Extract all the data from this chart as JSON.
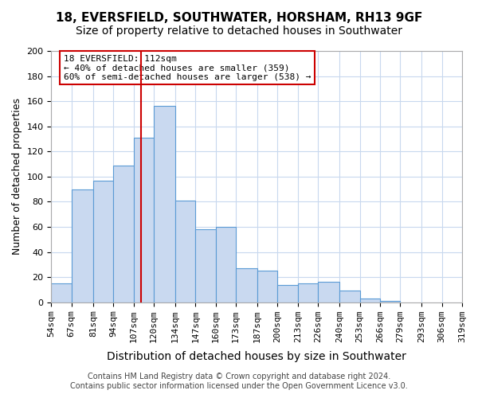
{
  "title": "18, EVERSFIELD, SOUTHWATER, HORSHAM, RH13 9GF",
  "subtitle": "Size of property relative to detached houses in Southwater",
  "xlabel": "Distribution of detached houses by size in Southwater",
  "ylabel": "Number of detached properties",
  "bar_values": [
    15,
    90,
    97,
    109,
    131,
    156,
    81,
    58,
    60,
    27,
    25,
    14,
    15,
    16,
    9,
    3,
    1
  ],
  "bar_labels": [
    "54sqm",
    "67sqm",
    "81sqm",
    "94sqm",
    "107sqm",
    "120sqm",
    "134sqm",
    "147sqm",
    "160sqm",
    "173sqm",
    "187sqm",
    "200sqm",
    "213sqm",
    "226sqm",
    "240sqm",
    "253sqm",
    "266sqm",
    "279sqm",
    "293sqm",
    "306sqm",
    "319sqm"
  ],
  "bar_left_edges": [
    54,
    67,
    81,
    94,
    107,
    120,
    134,
    147,
    160,
    173,
    187,
    200,
    213,
    226,
    240,
    253,
    266
  ],
  "bar_widths": [
    13,
    14,
    13,
    13,
    13,
    14,
    13,
    13,
    13,
    14,
    13,
    13,
    13,
    14,
    13,
    13,
    13
  ],
  "bar_color": "#c9d9f0",
  "bar_edge_color": "#5b9bd5",
  "vline_x": 112,
  "vline_color": "#cc0000",
  "ylim": [
    0,
    200
  ],
  "yticks": [
    0,
    20,
    40,
    60,
    80,
    100,
    120,
    140,
    160,
    180,
    200
  ],
  "xtick_positions": [
    54,
    67,
    81,
    94,
    107,
    120,
    134,
    147,
    160,
    173,
    187,
    200,
    213,
    226,
    240,
    253,
    266,
    279,
    293,
    306,
    319
  ],
  "annotation_title": "18 EVERSFIELD: 112sqm",
  "annotation_line1": "← 40% of detached houses are smaller (359)",
  "annotation_line2": "60% of semi-detached houses are larger (538) →",
  "annotation_box_color": "#ffffff",
  "annotation_box_edge": "#cc0000",
  "footer1": "Contains HM Land Registry data © Crown copyright and database right 2024.",
  "footer2": "Contains public sector information licensed under the Open Government Licence v3.0.",
  "bg_color": "#ffffff",
  "grid_color": "#c8d8ee",
  "title_fontsize": 11,
  "subtitle_fontsize": 10,
  "xlabel_fontsize": 10,
  "ylabel_fontsize": 9,
  "tick_fontsize": 8,
  "footer_fontsize": 7
}
